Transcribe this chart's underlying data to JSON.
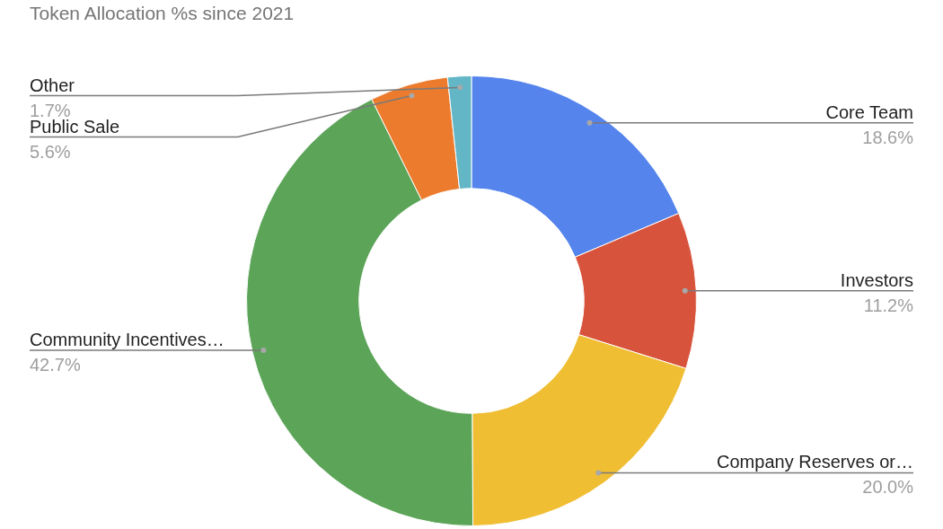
{
  "chart_data": {
    "type": "donut",
    "title": "Token Allocation %s since 2021",
    "categories": [
      "Core Team",
      "Investors",
      "Company Reserves or…",
      "Community Incentives…",
      "Public Sale",
      "Other"
    ],
    "values": [
      18.6,
      11.2,
      20.0,
      42.7,
      5.6,
      1.7
    ],
    "value_labels": [
      "18.6%",
      "11.2%",
      "20.0%",
      "42.7%",
      "5.6%",
      "1.7%"
    ],
    "colors": [
      "#5484ec",
      "#d8533c",
      "#f0be33",
      "#5ba458",
      "#ec7b2d",
      "#62b6c5"
    ],
    "legend": false
  }
}
